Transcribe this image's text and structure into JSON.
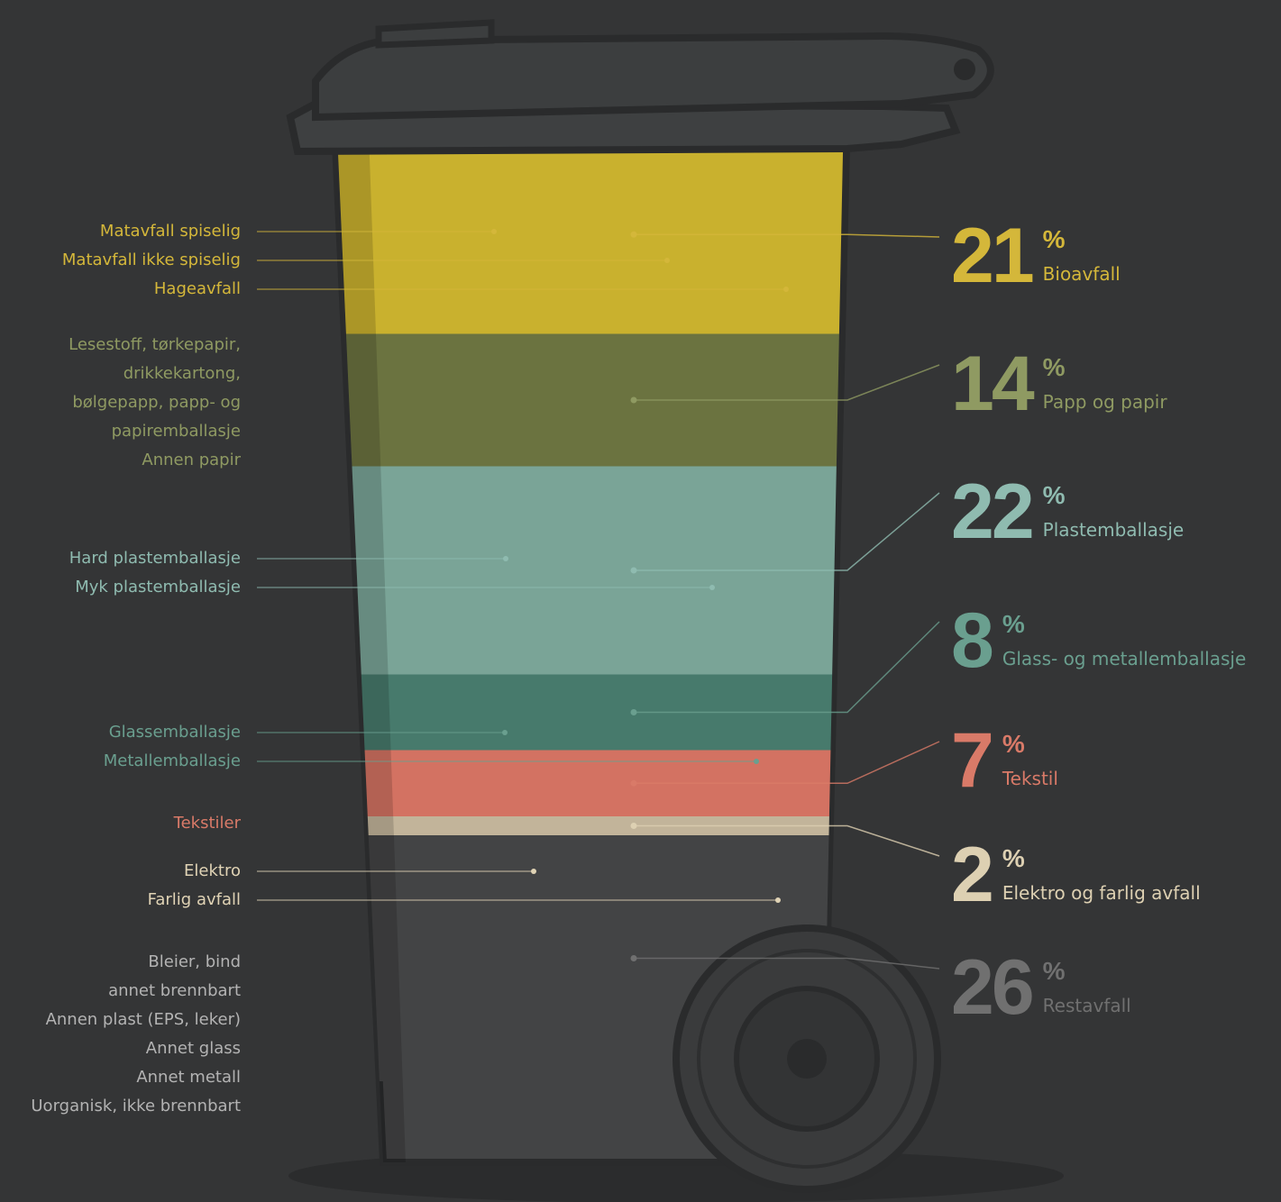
{
  "chart_data": {
    "type": "waste-bin",
    "unit": "%",
    "categories": [
      "Bioavfall",
      "Papp og papir",
      "Plastemballasje",
      "Glass- og metallemballasje",
      "Tekstil",
      "Elektro og farlig avfall",
      "Restavfall"
    ],
    "values": [
      21,
      14,
      22,
      8,
      7,
      2,
      26
    ],
    "colors": [
      "#c9b12e",
      "#6b7340",
      "#7aa497",
      "#477a6c",
      "#d37262",
      "#c2b49a",
      "#434445"
    ],
    "label_colors": [
      "#d4b73a",
      "#8f9a62",
      "#8fbbb0",
      "#6a9f8f",
      "#d97a68",
      "#ddd0b2",
      "#707070"
    ],
    "item_colors": [
      "#d4b73a",
      "#8f9a62",
      "#8fbbb0",
      "#6a9f8f",
      "#d97a68",
      "#e0d3b5",
      "#b3b3b3"
    ],
    "items": [
      [
        "Matavfall spiselig",
        "Matavfall ikke spiselig",
        "Hageavfall"
      ],
      [
        "Lesestoff, tørkepapir,",
        "drikkekartong,",
        "bølgepapp, papp- og",
        "papiremballasje",
        "Annen papir"
      ],
      [
        "Hard plastemballasje",
        "Myk plastemballasje"
      ],
      [
        "Glassemballasje",
        "Metallemballasje"
      ],
      [
        "Tekstiler"
      ],
      [
        "Elektro",
        "Farlig avfall"
      ],
      [
        "Bleier, bind",
        "annet brennbart",
        "Annen plast (EPS, leker)",
        "Annet glass",
        "Annet metall",
        "Uorganisk, ikke brennbart"
      ]
    ]
  }
}
